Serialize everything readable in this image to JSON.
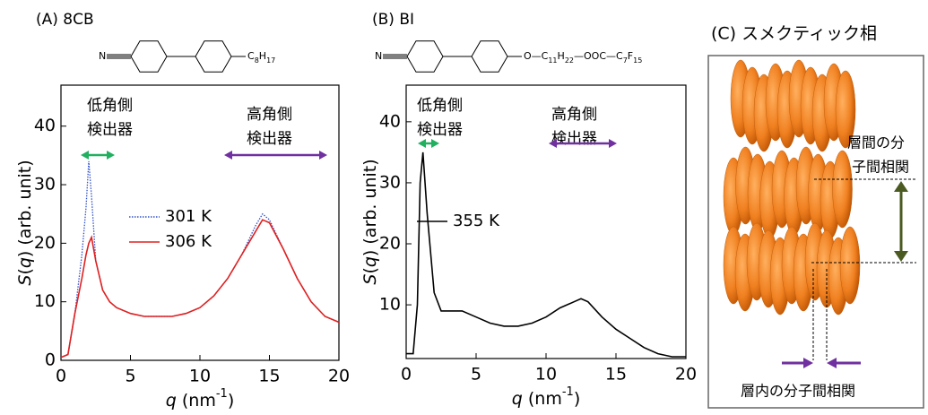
{
  "chart_data": [
    {
      "type": "line",
      "panel_label": "(A) 8CB",
      "molecule": {
        "head": "N",
        "tail": [
          "C",
          "8",
          "H",
          "17"
        ]
      },
      "xlabel": [
        "q",
        " (nm",
        "-1",
        ")"
      ],
      "ylabel": [
        "S",
        "(",
        "q",
        ") (arb. unit)"
      ],
      "annotations": [
        [
          "低角側",
          "検出器"
        ],
        [
          "高角側",
          "検出器"
        ]
      ],
      "x": [
        0,
        0.5,
        1,
        1.5,
        1.8,
        2,
        2.2,
        2.5,
        3,
        3.5,
        4,
        5,
        6,
        7,
        8,
        9,
        10,
        11,
        12,
        13,
        14,
        14.5,
        15,
        16,
        17,
        18,
        19,
        20
      ],
      "series": [
        {
          "name": "301 K",
          "color": "#3050c8",
          "style": "dotted",
          "values": [
            0.5,
            1,
            8,
            18,
            26,
            34,
            28,
            17,
            12,
            10,
            9,
            8,
            7.5,
            7.5,
            7.5,
            8,
            9,
            11,
            14,
            18,
            23,
            25,
            24,
            19,
            14,
            10,
            7.5,
            6.5
          ]
        },
        {
          "name": "306 K",
          "color": "#e02020",
          "style": "solid",
          "values": [
            0.5,
            1,
            8,
            14,
            18,
            20,
            21,
            17,
            12,
            10,
            9,
            8,
            7.5,
            7.5,
            7.5,
            8,
            9,
            11,
            14,
            18,
            22,
            24,
            23.5,
            19,
            14,
            10,
            7.5,
            6.5
          ]
        }
      ],
      "xlim": [
        0,
        20
      ],
      "ylim": [
        0,
        47
      ],
      "xticks": [
        0,
        5,
        10,
        15,
        20
      ],
      "yticks": [
        0,
        10,
        20,
        30,
        40
      ]
    },
    {
      "type": "line",
      "panel_label": "(B) BI",
      "molecule": {
        "head": "N",
        "tail": [
          "O—C",
          "11",
          "H",
          "22",
          "—OOC—C",
          "7",
          "F",
          "15"
        ]
      },
      "xlabel": [
        "q",
        " (nm",
        "-1",
        ")"
      ],
      "ylabel": [
        "S",
        "(",
        "q",
        ") (arb. unit)"
      ],
      "annotations": [
        [
          "低角側",
          "検出器"
        ],
        [
          "高角側",
          "検出器"
        ]
      ],
      "x": [
        0,
        0.5,
        0.8,
        1,
        1.2,
        1.5,
        2,
        2.5,
        3,
        4,
        5,
        6,
        7,
        8,
        9,
        10,
        11,
        12,
        12.5,
        13,
        14,
        15,
        16,
        17,
        18,
        19,
        20
      ],
      "series": [
        {
          "name": "355 K",
          "color": "#000000",
          "style": "solid",
          "values": [
            2,
            2,
            10,
            30,
            35,
            25,
            12,
            9,
            9,
            9,
            8,
            7,
            6.5,
            6.5,
            7,
            8,
            9.5,
            10.5,
            11,
            10.5,
            8,
            6,
            4.5,
            3,
            2,
            1.5,
            1.5
          ]
        }
      ],
      "xlim": [
        0,
        20
      ],
      "ylim": [
        1.2,
        46
      ],
      "xticks": [
        0,
        5,
        10,
        15,
        20
      ],
      "yticks": [
        10,
        20,
        30,
        40
      ]
    }
  ],
  "diagram": {
    "title": "(C) スメクティック相",
    "interlayer": [
      "層間の分",
      "子間相関"
    ],
    "intralayer": "層内の分子間相関"
  }
}
